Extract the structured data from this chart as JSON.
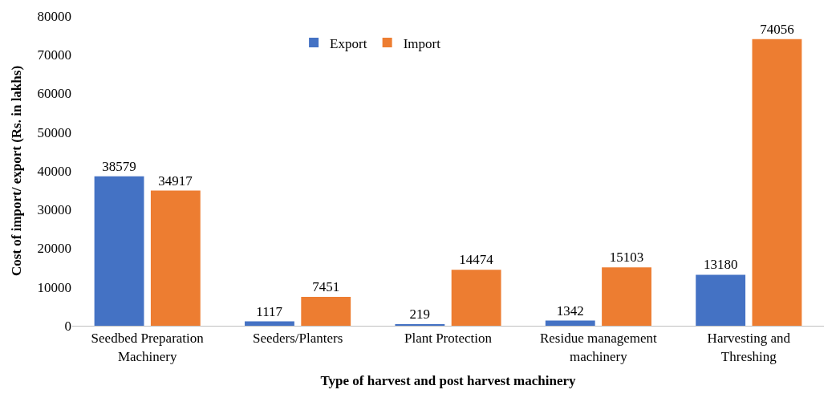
{
  "chart_data": {
    "type": "bar",
    "xlabel": "Type of harvest and post harvest machinery",
    "ylabel": "Cost of import/ export (Rs. in lakhs)",
    "categories": [
      "Seedbed Preparation Machinery",
      "Seeders/Planters",
      "Plant Protection",
      "Residue management machinery",
      "Harvesting and Threshing"
    ],
    "series": [
      {
        "name": "Export",
        "color": "#4472c4",
        "values": [
          38579,
          1117,
          219,
          1342,
          13180
        ]
      },
      {
        "name": "Import",
        "color": "#ed7d31",
        "values": [
          34917,
          7451,
          14474,
          15103,
          74056
        ]
      }
    ],
    "ylim": [
      0,
      80000
    ],
    "yticks": [
      0,
      10000,
      20000,
      30000,
      40000,
      50000,
      60000,
      70000,
      80000
    ],
    "data_labels": true,
    "legend": "top",
    "grid": false
  }
}
